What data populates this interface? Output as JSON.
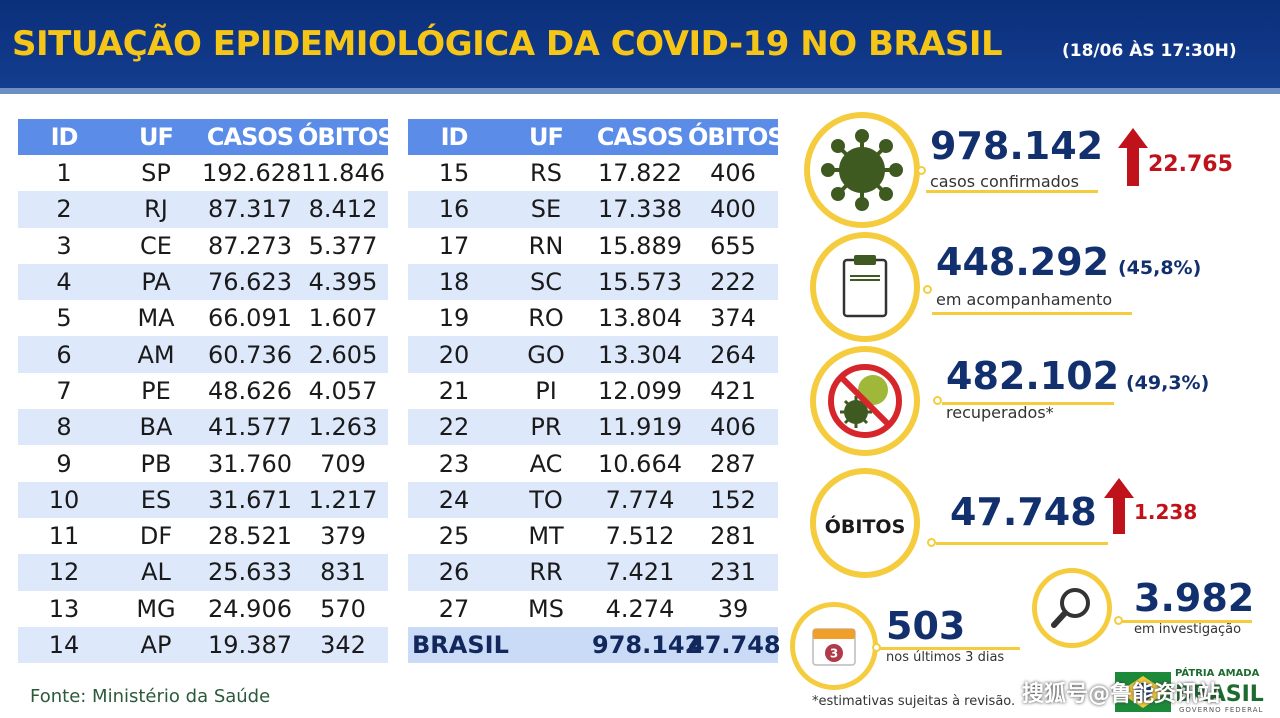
{
  "header": {
    "title": "SITUAÇÃO EPIDEMIOLÓGICA DA COVID-19 NO BRASIL",
    "date": "(18/06 ÀS 17:30H)"
  },
  "table": {
    "columns": [
      "ID",
      "UF",
      "CASOS",
      "ÓBITOS"
    ],
    "rows": [
      [
        "1",
        "SP",
        "192.628",
        "11.846"
      ],
      [
        "2",
        "RJ",
        "87.317",
        "8.412"
      ],
      [
        "3",
        "CE",
        "87.273",
        "5.377"
      ],
      [
        "4",
        "PA",
        "76.623",
        "4.395"
      ],
      [
        "5",
        "MA",
        "66.091",
        "1.607"
      ],
      [
        "6",
        "AM",
        "60.736",
        "2.605"
      ],
      [
        "7",
        "PE",
        "48.626",
        "4.057"
      ],
      [
        "8",
        "BA",
        "41.577",
        "1.263"
      ],
      [
        "9",
        "PB",
        "31.760",
        "709"
      ],
      [
        "10",
        "ES",
        "31.671",
        "1.217"
      ],
      [
        "11",
        "DF",
        "28.521",
        "379"
      ],
      [
        "12",
        "AL",
        "25.633",
        "831"
      ],
      [
        "13",
        "MG",
        "24.906",
        "570"
      ],
      [
        "14",
        "AP",
        "19.387",
        "342"
      ],
      [
        "15",
        "RS",
        "17.822",
        "406"
      ],
      [
        "16",
        "SE",
        "17.338",
        "400"
      ],
      [
        "17",
        "RN",
        "15.889",
        "655"
      ],
      [
        "18",
        "SC",
        "15.573",
        "222"
      ],
      [
        "19",
        "RO",
        "13.804",
        "374"
      ],
      [
        "20",
        "GO",
        "13.304",
        "264"
      ],
      [
        "21",
        "PI",
        "12.099",
        "421"
      ],
      [
        "22",
        "PR",
        "11.919",
        "406"
      ],
      [
        "23",
        "AC",
        "10.664",
        "287"
      ],
      [
        "24",
        "TO",
        "7.774",
        "152"
      ],
      [
        "25",
        "MT",
        "7.512",
        "281"
      ],
      [
        "26",
        "RR",
        "7.421",
        "231"
      ],
      [
        "27",
        "MS",
        "4.274",
        "39"
      ]
    ],
    "total": {
      "label": "BRASIL",
      "casos": "978.142",
      "obitos": "47.748"
    }
  },
  "stats": {
    "confirmed": {
      "value": "978.142",
      "label": "casos confirmados",
      "delta": "22.765",
      "icon": "virus-icon"
    },
    "monitoring": {
      "value": "448.292",
      "pct": "(45,8%)",
      "label": "em acompanhamento",
      "icon": "clipboard-icon"
    },
    "recovered": {
      "value": "482.102",
      "pct": "(49,3%)",
      "label": "recuperados*",
      "icon": "no-virus-icon"
    },
    "deaths": {
      "circle_label": "ÓBITOS",
      "value": "47.748",
      "delta": "1.238"
    },
    "last3": {
      "value": "503",
      "label": "nos últimos 3 dias",
      "cal_number": "3",
      "icon": "calendar-icon"
    },
    "investigation": {
      "value": "3.982",
      "label": "em investigação",
      "icon": "magnifier-icon"
    }
  },
  "footer": {
    "source": "Fonte: Ministério da Saúde",
    "note": "*estimativas sujeitas à revisão.",
    "watermark": "搜狐号@鲁能资讯站",
    "logo_top": "PÁTRIA AMADA",
    "logo_main": "BRASIL",
    "logo_bottom": "GOVERNO FEDERAL"
  },
  "colors": {
    "header_bg": "#0b2f7a",
    "title": "#f5c518",
    "table_header": "#5b8ce8",
    "row_alt": "#dde8fb",
    "accent_yellow": "#f5cc3e",
    "value_blue": "#12306e",
    "delta_red": "#c0121b"
  }
}
